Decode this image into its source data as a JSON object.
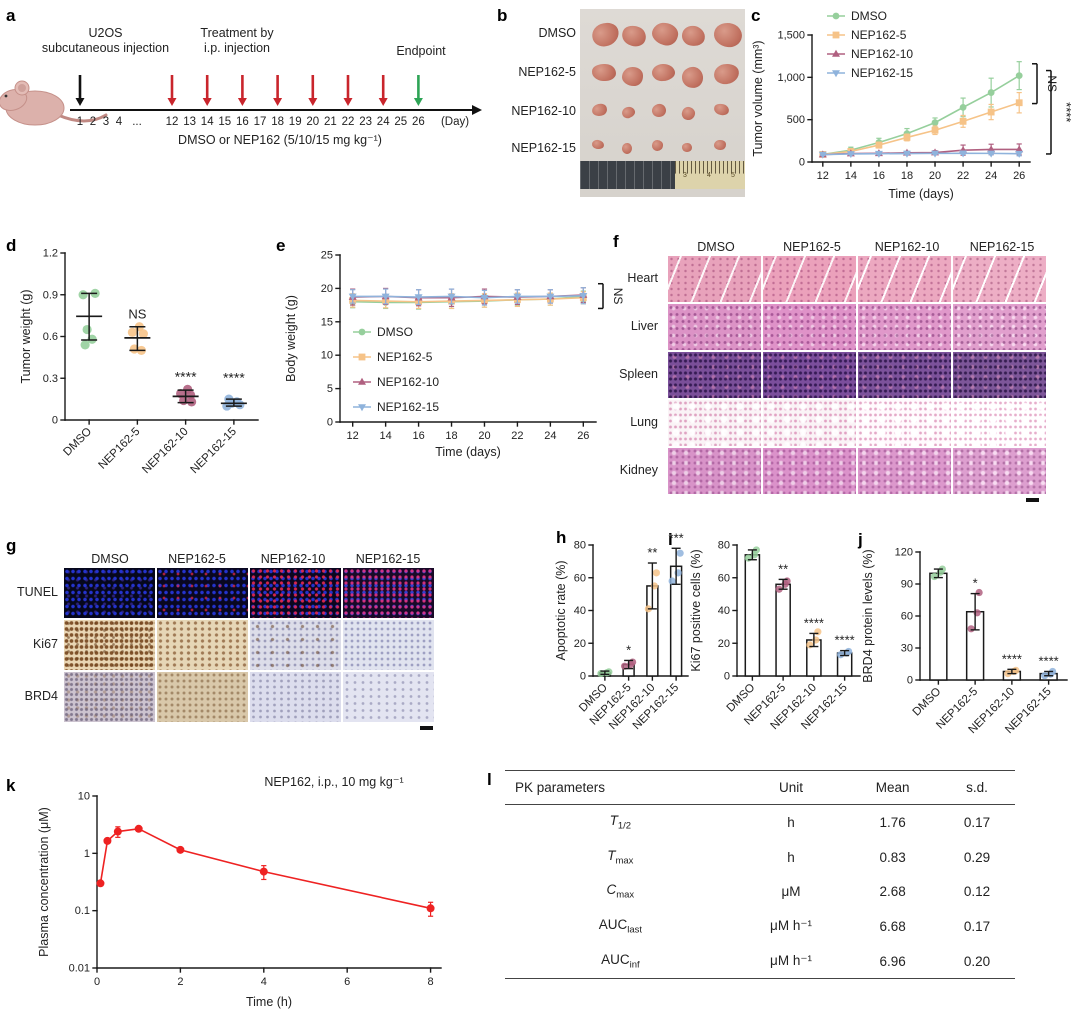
{
  "colors": {
    "dmso": "#96cf9c",
    "nep5": "#f6c388",
    "nep10": "#b06080",
    "nep15": "#8fb3dc",
    "red_arrow": "#c9252c",
    "green_arrow": "#2ea456",
    "black_arrow": "#111111",
    "pk_red": "#ee2222",
    "axis": "#1a1a1a"
  },
  "panel_a": {
    "letter": "a",
    "u2os_label": "U2OS\nsubcutaneous injection",
    "treatment_label": "Treatment by\ni.p. injection",
    "endpoint_label": "Endpoint",
    "days_early": [
      "1",
      "2",
      "3",
      "4"
    ],
    "ellipsis": "...",
    "days_late": [
      "12",
      "13",
      "14",
      "15",
      "16",
      "17",
      "18",
      "19",
      "20",
      "21",
      "22",
      "23",
      "24",
      "25",
      "26"
    ],
    "day_unit": "(Day)",
    "dose_label": "DMSO or NEP162 (5/10/15 mg kg⁻¹)",
    "red_arrow_days": [
      12,
      14,
      16,
      18,
      20,
      22,
      24
    ],
    "green_arrow_day": 26,
    "black_arrow_day": 1
  },
  "panel_b": {
    "letter": "b",
    "rows": [
      "DMSO",
      "NEP162-5",
      "NEP162-10",
      "NEP162-15"
    ],
    "ruler_numbers": [
      "3",
      "4",
      "5"
    ]
  },
  "panel_f": {
    "letter": "f",
    "cols": [
      "DMSO",
      "NEP162-5",
      "NEP162-10",
      "NEP162-15"
    ],
    "rows": [
      "Heart",
      "Liver",
      "Spleen",
      "Lung",
      "Kidney"
    ]
  },
  "panel_g": {
    "letter": "g",
    "cols": [
      "DMSO",
      "NEP162-5",
      "NEP162-10",
      "NEP162-15"
    ],
    "rows": [
      "TUNEL",
      "Ki67",
      "BRD4"
    ]
  },
  "panel_l": {
    "letter": "l",
    "headers": [
      "PK parameters",
      "Unit",
      "Mean",
      "s.d."
    ],
    "rows": [
      {
        "p": "T",
        "sub": "1/2",
        "italic": true,
        "unit": "h",
        "mean": "1.76",
        "sd": "0.17"
      },
      {
        "p": "T",
        "sub": "max",
        "italic": true,
        "unit": "h",
        "mean": "0.83",
        "sd": "0.29"
      },
      {
        "p": "C",
        "sub": "max",
        "italic": true,
        "unit": "μM",
        "mean": "2.68",
        "sd": "0.12"
      },
      {
        "p": "AUC",
        "sub": "last",
        "italic": false,
        "unit": "μM h⁻¹",
        "mean": "6.68",
        "sd": "0.17"
      },
      {
        "p": "AUC",
        "sub": "inf",
        "italic": false,
        "unit": "μM h⁻¹",
        "mean": "6.96",
        "sd": "0.20"
      }
    ]
  },
  "chart_data": [
    {
      "id": "c",
      "panel_letter": "c",
      "type": "line",
      "title": "",
      "xlabel": "Time (days)",
      "ylabel": "Tumor volume (mm³)",
      "x": [
        12,
        14,
        16,
        18,
        20,
        22,
        24,
        26
      ],
      "xticks": [
        12,
        14,
        16,
        18,
        20,
        22,
        24,
        26
      ],
      "ylim": [
        0,
        1500
      ],
      "yticks": [
        0,
        500,
        1000,
        1500
      ],
      "ytick_labels": [
        "0",
        "500",
        "1,000",
        "1,500"
      ],
      "series": [
        {
          "name": "DMSO",
          "color": "#96cf9c",
          "marker": "circle",
          "values": [
            90,
            140,
            230,
            335,
            465,
            645,
            820,
            1020
          ],
          "err": [
            25,
            35,
            50,
            60,
            55,
            110,
            170,
            165
          ]
        },
        {
          "name": "NEP162-5",
          "color": "#f6c388",
          "marker": "square",
          "values": [
            90,
            125,
            200,
            290,
            375,
            480,
            590,
            700
          ],
          "err": [
            15,
            25,
            35,
            40,
            50,
            70,
            90,
            120
          ]
        },
        {
          "name": "NEP162-10",
          "color": "#b06080",
          "marker": "tri-up",
          "values": [
            88,
            100,
            103,
            108,
            112,
            140,
            148,
            148
          ],
          "err": [
            12,
            15,
            15,
            18,
            22,
            60,
            62,
            65
          ]
        },
        {
          "name": "NEP162-15",
          "color": "#8fb3dc",
          "marker": "tri-down",
          "values": [
            88,
            95,
            98,
            100,
            102,
            103,
            102,
            98
          ],
          "err": [
            10,
            10,
            12,
            12,
            12,
            14,
            15,
            25
          ]
        }
      ],
      "brackets": [
        {
          "dx": 7,
          "from": 1160,
          "to": 690,
          "label": "NS"
        },
        {
          "dx": 21,
          "from": 1080,
          "to": 95,
          "label": "****"
        }
      ]
    },
    {
      "id": "d",
      "panel_letter": "d",
      "type": "scatter",
      "xlabel": "",
      "ylabel": "Tumor weight (g)",
      "categories": [
        "DMSO",
        "NEP162-5",
        "NEP162-10",
        "NEP162-15"
      ],
      "ylim": [
        0,
        1.2
      ],
      "yticks": [
        0,
        0.3,
        0.6,
        0.9,
        1.2
      ],
      "ytick_labels": [
        "0",
        "0.3",
        "0.6",
        "0.9",
        "1.2"
      ],
      "points": [
        [
          0.9,
          0.91,
          0.65,
          0.58,
          0.54
        ],
        [
          0.67,
          0.63,
          0.62,
          0.51,
          0.5
        ],
        [
          0.22,
          0.19,
          0.18,
          0.14,
          0.13
        ],
        [
          0.15,
          0.13,
          0.12,
          0.11,
          0.1
        ]
      ],
      "jitter": [
        [
          -6,
          6,
          -2,
          3,
          -4
        ],
        [
          2,
          -5,
          6,
          -3,
          4
        ],
        [
          2,
          -5,
          5,
          -2,
          6
        ],
        [
          -5,
          3,
          -2,
          6,
          -7
        ]
      ],
      "point_colors": [
        "#96cf9c",
        "#f6c388",
        "#b06080",
        "#8fb3dc"
      ],
      "means": [
        0.745,
        0.59,
        0.17,
        0.12
      ],
      "sd_low": [
        0.575,
        0.5,
        0.125,
        0.1
      ],
      "sd_high": [
        0.91,
        0.67,
        0.215,
        0.15
      ],
      "sig": [
        "",
        "NS",
        "****",
        "****"
      ],
      "sig_y": [
        0,
        0.73,
        0.275,
        0.27
      ]
    },
    {
      "id": "e",
      "panel_letter": "e",
      "type": "line",
      "xlabel": "Time (days)",
      "ylabel": "Body weight (g)",
      "x": [
        12,
        14,
        16,
        18,
        20,
        22,
        24,
        26
      ],
      "xticks": [
        12,
        14,
        16,
        18,
        20,
        22,
        24,
        26
      ],
      "ylim": [
        0,
        25
      ],
      "yticks": [
        0,
        5,
        10,
        15,
        20,
        25
      ],
      "ytick_labels": [
        "0",
        "5",
        "10",
        "15",
        "20",
        "25"
      ],
      "series": [
        {
          "name": "DMSO",
          "color": "#96cf9c",
          "marker": "circle",
          "values": [
            18.0,
            17.9,
            17.9,
            18.0,
            18.1,
            18.3,
            18.4,
            18.8
          ],
          "err": [
            0.9,
            0.9,
            1.0,
            1.0,
            0.9,
            0.9,
            0.9,
            0.8
          ]
        },
        {
          "name": "NEP162-5",
          "color": "#f6c388",
          "marker": "square",
          "values": [
            18.2,
            18.1,
            18.0,
            18.1,
            18.2,
            18.3,
            18.4,
            18.6
          ],
          "err": [
            1.0,
            1.0,
            1.0,
            1.1,
            1.0,
            1.0,
            0.9,
            0.9
          ]
        },
        {
          "name": "NEP162-10",
          "color": "#b06080",
          "marker": "tri-up",
          "values": [
            18.7,
            18.8,
            18.6,
            18.6,
            18.8,
            18.7,
            18.8,
            19.0
          ],
          "err": [
            1.2,
            1.2,
            1.2,
            1.3,
            1.1,
            1.1,
            1.0,
            1.1
          ]
        },
        {
          "name": "NEP162-15",
          "color": "#8fb3dc",
          "marker": "tri-down",
          "values": [
            18.8,
            18.8,
            18.7,
            18.8,
            18.6,
            18.8,
            18.8,
            18.9
          ],
          "err": [
            1.0,
            1.1,
            1.1,
            1.1,
            1.1,
            1.0,
            1.0,
            1.2
          ]
        }
      ],
      "brackets": [
        {
          "dx": 7,
          "from": 20.7,
          "to": 17.0,
          "label": "NS"
        }
      ]
    },
    {
      "id": "h",
      "panel_letter": "h",
      "type": "bar",
      "ylabel": "Apoptotic rate (%)",
      "categories": [
        "DMSO",
        "NEP162-5",
        "NEP162-10",
        "NEP162-15"
      ],
      "values": [
        2,
        7,
        55,
        67
      ],
      "err": [
        1,
        2.5,
        14,
        11
      ],
      "sig": [
        "",
        "*",
        "**",
        "***"
      ],
      "points": [
        [
          1.5,
          2,
          2.5
        ],
        [
          6,
          7,
          8.5
        ],
        [
          41,
          55,
          63
        ],
        [
          58,
          63,
          75
        ]
      ],
      "point_colors": [
        "#96cf9c",
        "#b06080",
        "#f6c388",
        "#8fb3dc"
      ],
      "ylim": [
        0,
        80
      ],
      "yticks": [
        0,
        20,
        40,
        60,
        80
      ],
      "ytick_labels": [
        "0",
        "20",
        "40",
        "60",
        "80"
      ]
    },
    {
      "id": "i",
      "panel_letter": "i",
      "type": "bar",
      "ylabel": "Ki67 positive cells (%)",
      "categories": [
        "DMSO",
        "NEP162-5",
        "NEP162-10",
        "NEP162-15"
      ],
      "values": [
        74,
        56,
        22,
        14
      ],
      "err": [
        3,
        3,
        4,
        1.5
      ],
      "sig": [
        "",
        "**",
        "****",
        "****"
      ],
      "points": [
        [
          72,
          74,
          77
        ],
        [
          53,
          56,
          58
        ],
        [
          19,
          22,
          27
        ],
        [
          13,
          14,
          15
        ]
      ],
      "point_colors": [
        "#96cf9c",
        "#b06080",
        "#f6c388",
        "#8fb3dc"
      ],
      "ylim": [
        0,
        80
      ],
      "yticks": [
        0,
        20,
        40,
        60,
        80
      ],
      "ytick_labels": [
        "0",
        "20",
        "40",
        "60",
        "80"
      ]
    },
    {
      "id": "j",
      "panel_letter": "j",
      "type": "bar",
      "ylabel": "BRD4 protein levels (%)",
      "categories": [
        "DMSO",
        "NEP162-5",
        "NEP162-10",
        "NEP162-15"
      ],
      "values": [
        100,
        64,
        8,
        6
      ],
      "err": [
        4,
        17,
        2,
        2
      ],
      "sig": [
        "",
        "*",
        "****",
        "****"
      ],
      "points": [
        [
          97,
          101,
          104
        ],
        [
          48,
          63,
          82
        ],
        [
          6,
          8,
          9
        ],
        [
          4,
          5.5,
          8
        ]
      ],
      "point_colors": [
        "#96cf9c",
        "#b06080",
        "#f6c388",
        "#8fb3dc"
      ],
      "ylim": [
        0,
        120
      ],
      "yticks": [
        0,
        30,
        60,
        90,
        120
      ],
      "ytick_labels": [
        "0",
        "30",
        "60",
        "90",
        "120"
      ]
    },
    {
      "id": "k",
      "panel_letter": "k",
      "type": "line",
      "yscale": "log",
      "title": "NEP162, i.p., 10 mg kg⁻¹",
      "xlabel": "Time (h)",
      "ylabel": "Plasma concentration (μM)",
      "x": [
        0.083,
        0.25,
        0.5,
        1,
        2,
        4,
        8
      ],
      "xticks": [
        0,
        2,
        4,
        6,
        8
      ],
      "ylim": [
        0.01,
        10
      ],
      "yticks": [
        0.01,
        0.1,
        1,
        10
      ],
      "ytick_labels": [
        "0.01",
        "0.1",
        "1",
        "10"
      ],
      "series": [
        {
          "name": "NEP162",
          "color": "#ee2222",
          "marker": "circle",
          "values": [
            0.3,
            1.65,
            2.4,
            2.68,
            1.15,
            0.48,
            0.11
          ],
          "err": [
            0.02,
            0.12,
            0.5,
            0.2,
            0.1,
            0.13,
            0.03
          ]
        }
      ]
    }
  ]
}
